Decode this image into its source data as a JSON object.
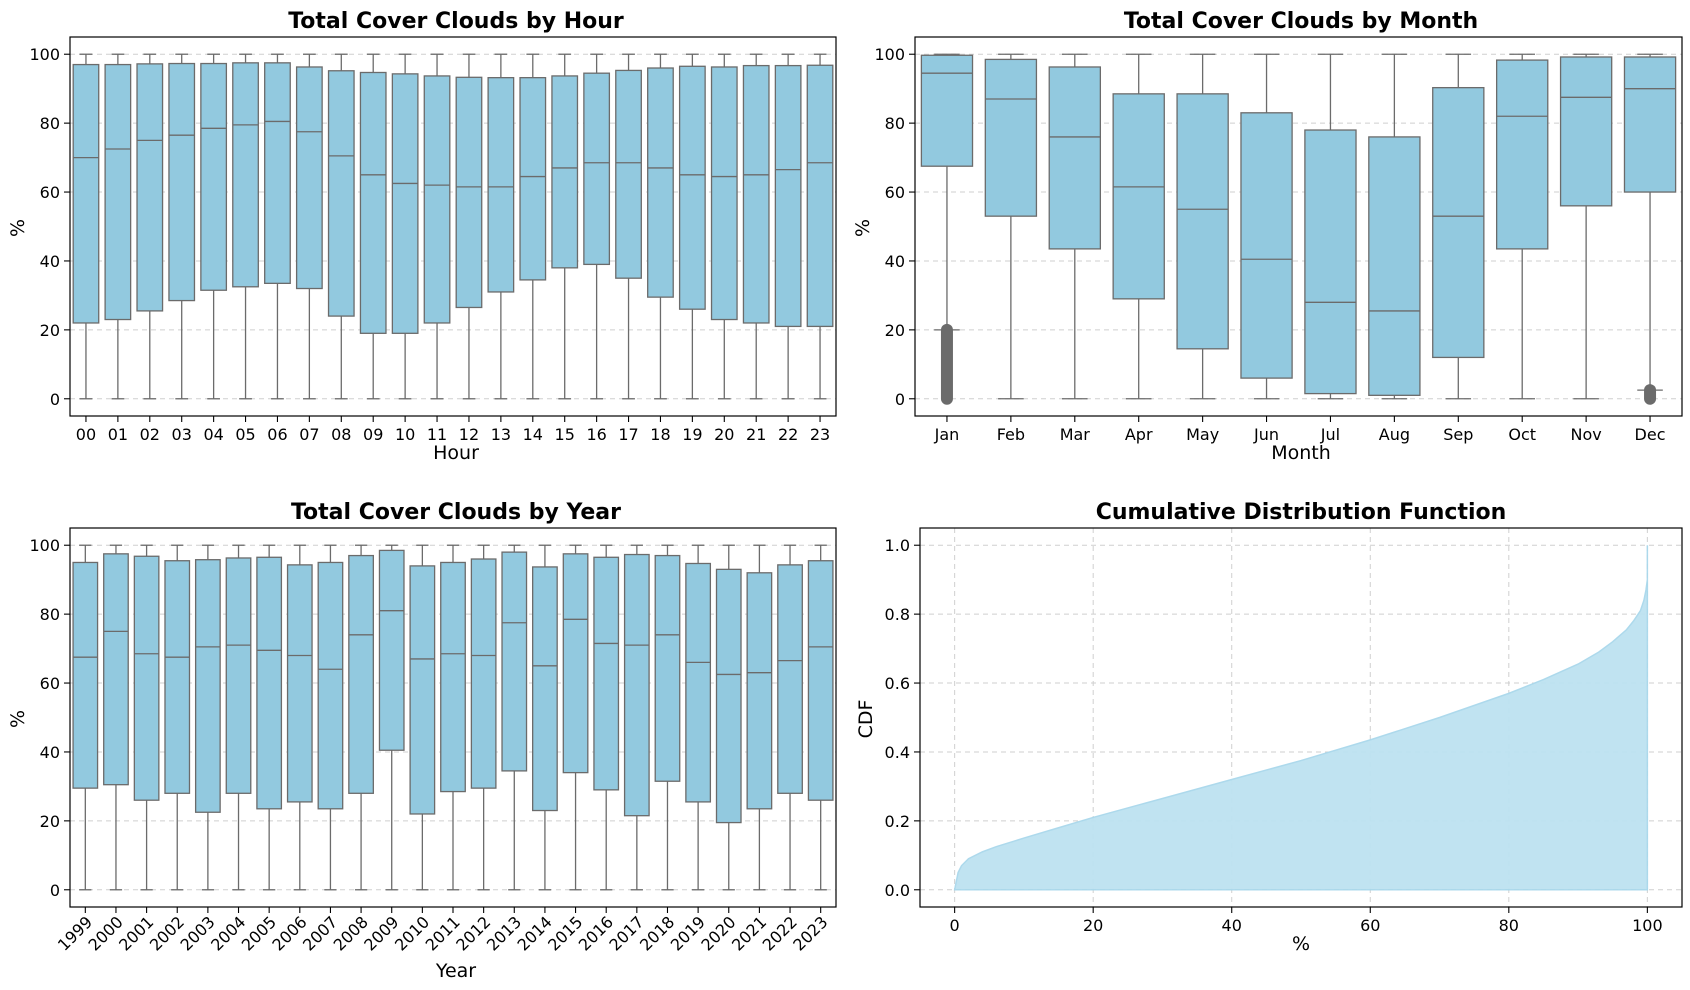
{
  "chart_data": [
    {
      "type": "boxplot",
      "title": "Total Cover Clouds by Hour",
      "xlabel": "Hour",
      "ylabel": "%",
      "ylim": [
        -5,
        105
      ],
      "yticks": [
        0,
        20,
        40,
        60,
        80,
        100
      ],
      "grid": "y",
      "color": "#92c9df",
      "categories": [
        "00",
        "01",
        "02",
        "03",
        "04",
        "05",
        "06",
        "07",
        "08",
        "09",
        "10",
        "11",
        "12",
        "13",
        "14",
        "15",
        "16",
        "17",
        "18",
        "19",
        "20",
        "21",
        "22",
        "23"
      ],
      "boxes": [
        {
          "q1": 22,
          "median": 70,
          "q3": 97,
          "whislo": 0,
          "whishi": 100
        },
        {
          "q1": 23,
          "median": 72.5,
          "q3": 97,
          "whislo": 0,
          "whishi": 100
        },
        {
          "q1": 25.5,
          "median": 75,
          "q3": 97.2,
          "whislo": 0,
          "whishi": 100
        },
        {
          "q1": 28.5,
          "median": 76.5,
          "q3": 97.3,
          "whislo": 0,
          "whishi": 100
        },
        {
          "q1": 31.5,
          "median": 78.5,
          "q3": 97.3,
          "whislo": 0,
          "whishi": 100
        },
        {
          "q1": 32.5,
          "median": 79.5,
          "q3": 97.5,
          "whislo": 0,
          "whishi": 100
        },
        {
          "q1": 33.5,
          "median": 80.5,
          "q3": 97.5,
          "whislo": 0,
          "whishi": 100
        },
        {
          "q1": 32,
          "median": 77.5,
          "q3": 96.3,
          "whislo": 0,
          "whishi": 100
        },
        {
          "q1": 24,
          "median": 70.5,
          "q3": 95.2,
          "whislo": 0,
          "whishi": 100
        },
        {
          "q1": 19,
          "median": 65,
          "q3": 94.7,
          "whislo": 0,
          "whishi": 100
        },
        {
          "q1": 19,
          "median": 62.5,
          "q3": 94.3,
          "whislo": 0,
          "whishi": 100
        },
        {
          "q1": 22,
          "median": 62,
          "q3": 93.7,
          "whislo": 0,
          "whishi": 100
        },
        {
          "q1": 26.5,
          "median": 61.5,
          "q3": 93.3,
          "whislo": 0,
          "whishi": 100
        },
        {
          "q1": 31,
          "median": 61.5,
          "q3": 93.2,
          "whislo": 0,
          "whishi": 100
        },
        {
          "q1": 34.5,
          "median": 64.5,
          "q3": 93.2,
          "whislo": 0,
          "whishi": 100
        },
        {
          "q1": 38,
          "median": 67,
          "q3": 93.7,
          "whislo": 0,
          "whishi": 100
        },
        {
          "q1": 39,
          "median": 68.5,
          "q3": 94.5,
          "whislo": 0,
          "whishi": 100
        },
        {
          "q1": 35,
          "median": 68.5,
          "q3": 95.3,
          "whislo": 0,
          "whishi": 100
        },
        {
          "q1": 29.5,
          "median": 67,
          "q3": 96,
          "whislo": 0,
          "whishi": 100
        },
        {
          "q1": 26,
          "median": 65,
          "q3": 96.5,
          "whislo": 0,
          "whishi": 100
        },
        {
          "q1": 23,
          "median": 64.5,
          "q3": 96.3,
          "whislo": 0,
          "whishi": 100
        },
        {
          "q1": 22,
          "median": 65,
          "q3": 96.7,
          "whislo": 0,
          "whishi": 100
        },
        {
          "q1": 21,
          "median": 66.5,
          "q3": 96.7,
          "whislo": 0,
          "whishi": 100
        },
        {
          "q1": 21,
          "median": 68.5,
          "q3": 96.8,
          "whislo": 0,
          "whishi": 100
        }
      ]
    },
    {
      "type": "boxplot",
      "title": "Total Cover Clouds by Month",
      "xlabel": "Month",
      "ylabel": "%",
      "ylim": [
        -5,
        105
      ],
      "yticks": [
        0,
        20,
        40,
        60,
        80,
        100
      ],
      "grid": "y",
      "color": "#92c9df",
      "categories": [
        "Jan",
        "Feb",
        "Mar",
        "Apr",
        "May",
        "Jun",
        "Jul",
        "Aug",
        "Sep",
        "Oct",
        "Nov",
        "Dec"
      ],
      "boxes": [
        {
          "q1": 67.5,
          "median": 94.5,
          "q3": 99.7,
          "whislo": 20,
          "whishi": 100,
          "outliers_range": [
            0,
            20
          ]
        },
        {
          "q1": 53,
          "median": 87,
          "q3": 98.5,
          "whislo": 0,
          "whishi": 100
        },
        {
          "q1": 43.5,
          "median": 76,
          "q3": 96.3,
          "whislo": 0,
          "whishi": 100
        },
        {
          "q1": 29,
          "median": 61.5,
          "q3": 88.5,
          "whislo": 0,
          "whishi": 100
        },
        {
          "q1": 14.5,
          "median": 55,
          "q3": 88.5,
          "whislo": 0,
          "whishi": 100
        },
        {
          "q1": 6,
          "median": 40.5,
          "q3": 83,
          "whislo": 0,
          "whishi": 100
        },
        {
          "q1": 1.5,
          "median": 28,
          "q3": 78,
          "whislo": 0,
          "whishi": 100
        },
        {
          "q1": 1,
          "median": 25.5,
          "q3": 76,
          "whislo": 0,
          "whishi": 100
        },
        {
          "q1": 12,
          "median": 53,
          "q3": 90.3,
          "whislo": 0,
          "whishi": 100
        },
        {
          "q1": 43.5,
          "median": 82,
          "q3": 98.3,
          "whislo": 0,
          "whishi": 100
        },
        {
          "q1": 56,
          "median": 87.5,
          "q3": 99.2,
          "whislo": 0,
          "whishi": 100
        },
        {
          "q1": 60,
          "median": 90,
          "q3": 99.2,
          "whislo": 2.5,
          "whishi": 100,
          "outliers_range": [
            0,
            2.5
          ]
        }
      ]
    },
    {
      "type": "boxplot",
      "title": "Total Cover Clouds by Year",
      "xlabel": "Year",
      "ylabel": "%",
      "ylim": [
        -5,
        105
      ],
      "yticks": [
        0,
        20,
        40,
        60,
        80,
        100
      ],
      "grid": "y",
      "color": "#92c9df",
      "categories": [
        "1999",
        "2000",
        "2001",
        "2002",
        "2003",
        "2004",
        "2005",
        "2006",
        "2007",
        "2008",
        "2009",
        "2010",
        "2011",
        "2012",
        "2013",
        "2014",
        "2015",
        "2016",
        "2017",
        "2018",
        "2019",
        "2020",
        "2021",
        "2022",
        "2023"
      ],
      "boxes": [
        {
          "q1": 29.5,
          "median": 67.5,
          "q3": 95,
          "whislo": 0,
          "whishi": 100
        },
        {
          "q1": 30.5,
          "median": 75,
          "q3": 97.5,
          "whislo": 0,
          "whishi": 100
        },
        {
          "q1": 26,
          "median": 68.5,
          "q3": 96.8,
          "whislo": 0,
          "whishi": 100
        },
        {
          "q1": 28,
          "median": 67.5,
          "q3": 95.5,
          "whislo": 0,
          "whishi": 100
        },
        {
          "q1": 22.5,
          "median": 70.5,
          "q3": 95.8,
          "whislo": 0,
          "whishi": 100
        },
        {
          "q1": 28,
          "median": 71,
          "q3": 96.3,
          "whislo": 0,
          "whishi": 100
        },
        {
          "q1": 23.5,
          "median": 69.5,
          "q3": 96.5,
          "whislo": 0,
          "whishi": 100
        },
        {
          "q1": 25.5,
          "median": 68,
          "q3": 94.3,
          "whislo": 0,
          "whishi": 100
        },
        {
          "q1": 23.5,
          "median": 64,
          "q3": 95,
          "whislo": 0,
          "whishi": 100
        },
        {
          "q1": 28,
          "median": 74,
          "q3": 97,
          "whislo": 0,
          "whishi": 100
        },
        {
          "q1": 40.5,
          "median": 81,
          "q3": 98.5,
          "whislo": 0,
          "whishi": 100
        },
        {
          "q1": 22,
          "median": 67,
          "q3": 94,
          "whislo": 0,
          "whishi": 100
        },
        {
          "q1": 28.5,
          "median": 68.5,
          "q3": 95,
          "whislo": 0,
          "whishi": 100
        },
        {
          "q1": 29.5,
          "median": 68,
          "q3": 96,
          "whislo": 0,
          "whishi": 100
        },
        {
          "q1": 34.5,
          "median": 77.5,
          "q3": 98,
          "whislo": 0,
          "whishi": 100
        },
        {
          "q1": 23,
          "median": 65,
          "q3": 93.7,
          "whislo": 0,
          "whishi": 100
        },
        {
          "q1": 34,
          "median": 78.5,
          "q3": 97.5,
          "whislo": 0,
          "whishi": 100
        },
        {
          "q1": 29,
          "median": 71.5,
          "q3": 96.5,
          "whislo": 0,
          "whishi": 100
        },
        {
          "q1": 21.5,
          "median": 71,
          "q3": 97.3,
          "whislo": 0,
          "whishi": 100
        },
        {
          "q1": 31.5,
          "median": 74,
          "q3": 97,
          "whislo": 0,
          "whishi": 100
        },
        {
          "q1": 25.5,
          "median": 66,
          "q3": 94.7,
          "whislo": 0,
          "whishi": 100
        },
        {
          "q1": 19.5,
          "median": 62.5,
          "q3": 93,
          "whislo": 0,
          "whishi": 100
        },
        {
          "q1": 23.5,
          "median": 63,
          "q3": 92,
          "whislo": 0,
          "whishi": 100
        },
        {
          "q1": 28,
          "median": 66.5,
          "q3": 94.3,
          "whislo": 0,
          "whishi": 100
        },
        {
          "q1": 26,
          "median": 70.5,
          "q3": 95.5,
          "whislo": 0,
          "whishi": 100
        }
      ]
    },
    {
      "type": "area",
      "title": "Cumulative Distribution Function",
      "xlabel": "%",
      "ylabel": "CDF",
      "xlim": [
        -5,
        105
      ],
      "ylim": [
        -0.05,
        1.05
      ],
      "xticks": [
        0,
        20,
        40,
        60,
        80,
        100
      ],
      "yticks": [
        0.0,
        0.2,
        0.4,
        0.6,
        0.8,
        1.0
      ],
      "ytick_labels": [
        "0.0",
        "0.2",
        "0.4",
        "0.6",
        "0.8",
        "1.0"
      ],
      "grid": "both",
      "color": "#bde2f1",
      "x": [
        0,
        0.5,
        1,
        2,
        4,
        6,
        10,
        15,
        20,
        30,
        40,
        50,
        60,
        70,
        80,
        85,
        90,
        93,
        95,
        97,
        98,
        99,
        99.5,
        99.8,
        100,
        100
      ],
      "y": [
        0.0,
        0.05,
        0.07,
        0.09,
        0.11,
        0.125,
        0.15,
        0.18,
        0.21,
        0.265,
        0.32,
        0.375,
        0.435,
        0.5,
        0.57,
        0.61,
        0.655,
        0.69,
        0.72,
        0.755,
        0.78,
        0.81,
        0.84,
        0.87,
        0.9,
        1.0
      ]
    }
  ]
}
